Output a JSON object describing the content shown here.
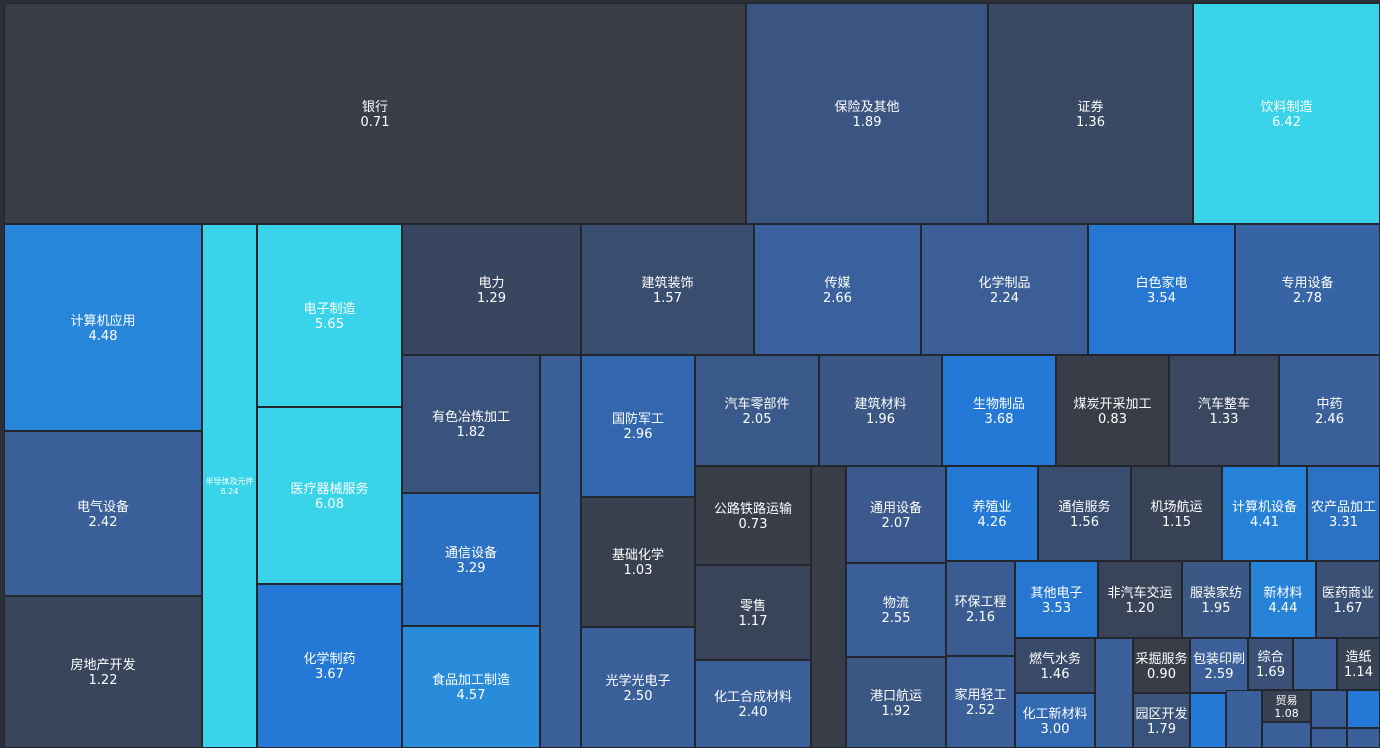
{
  "chart_data": {
    "type": "treemap",
    "value_format": "2 decimals",
    "color_scale": {
      "low": "#383d48",
      "mid": "#3b5f99",
      "high_blue": "#2479d6",
      "high_cyan": "#3ad4ea"
    },
    "items": [
      {
        "name": "银行",
        "value": 0.71
      },
      {
        "name": "保险及其他",
        "value": 1.89
      },
      {
        "name": "证券",
        "value": 1.36
      },
      {
        "name": "饮料制造",
        "value": 6.42
      },
      {
        "name": "计算机应用",
        "value": 4.48
      },
      {
        "name": "半导体及元件",
        "value": 6.24
      },
      {
        "name": "电子制造",
        "value": 5.65
      },
      {
        "name": "电力",
        "value": 1.29
      },
      {
        "name": "建筑装饰",
        "value": 1.57
      },
      {
        "name": "传媒",
        "value": 2.66
      },
      {
        "name": "化学制品",
        "value": 2.24
      },
      {
        "name": "白色家电",
        "value": 3.54
      },
      {
        "name": "专用设备",
        "value": 2.78
      },
      {
        "name": "电气设备",
        "value": 2.42
      },
      {
        "name": "医疗器械服务",
        "value": 6.08
      },
      {
        "name": "有色冶炼加工",
        "value": 1.82
      },
      {
        "name": "国防军工",
        "value": 2.96
      },
      {
        "name": "汽车零部件",
        "value": 2.05
      },
      {
        "name": "建筑材料",
        "value": 1.96
      },
      {
        "name": "生物制品",
        "value": 3.68
      },
      {
        "name": "煤炭开采加工",
        "value": 0.83
      },
      {
        "name": "汽车整车",
        "value": 1.33
      },
      {
        "name": "中药",
        "value": 2.46
      },
      {
        "name": "通信设备",
        "value": 3.29
      },
      {
        "name": "基础化学",
        "value": 1.03
      },
      {
        "name": "公路铁路运输",
        "value": 0.73
      },
      {
        "name": "通用设备",
        "value": 2.07
      },
      {
        "name": "养殖业",
        "value": 4.26
      },
      {
        "name": "通信服务",
        "value": 1.56
      },
      {
        "name": "机场航运",
        "value": 1.15
      },
      {
        "name": "计算机设备",
        "value": 4.41
      },
      {
        "name": "农产品加工",
        "value": 3.31
      },
      {
        "name": "房地产开发",
        "value": 1.22
      },
      {
        "name": "化学制药",
        "value": 3.67
      },
      {
        "name": "食品加工制造",
        "value": 4.57
      },
      {
        "name": "光学光电子",
        "value": 2.5
      },
      {
        "name": "零售",
        "value": 1.17
      },
      {
        "name": "物流",
        "value": 2.55
      },
      {
        "name": "环保工程",
        "value": 2.16
      },
      {
        "name": "其他电子",
        "value": 3.53
      },
      {
        "name": "非汽车交运",
        "value": 1.2
      },
      {
        "name": "服装家纺",
        "value": 1.95
      },
      {
        "name": "新材料",
        "value": 4.44
      },
      {
        "name": "医药商业",
        "value": 1.67
      },
      {
        "name": "燃气水务",
        "value": 1.46
      },
      {
        "name": "采掘服务",
        "value": 0.9
      },
      {
        "name": "包装印刷",
        "value": 2.59
      },
      {
        "name": "综合",
        "value": 1.69
      },
      {
        "name": "造纸",
        "value": 1.14
      },
      {
        "name": "贸易",
        "value": 1.08
      },
      {
        "name": "化工合成材料",
        "value": 2.4
      },
      {
        "name": "港口航运",
        "value": 1.92
      },
      {
        "name": "家用轻工",
        "value": 2.52
      },
      {
        "name": "化工新材料",
        "value": 3.0
      },
      {
        "name": "园区开发",
        "value": 1.79
      }
    ]
  }
}
